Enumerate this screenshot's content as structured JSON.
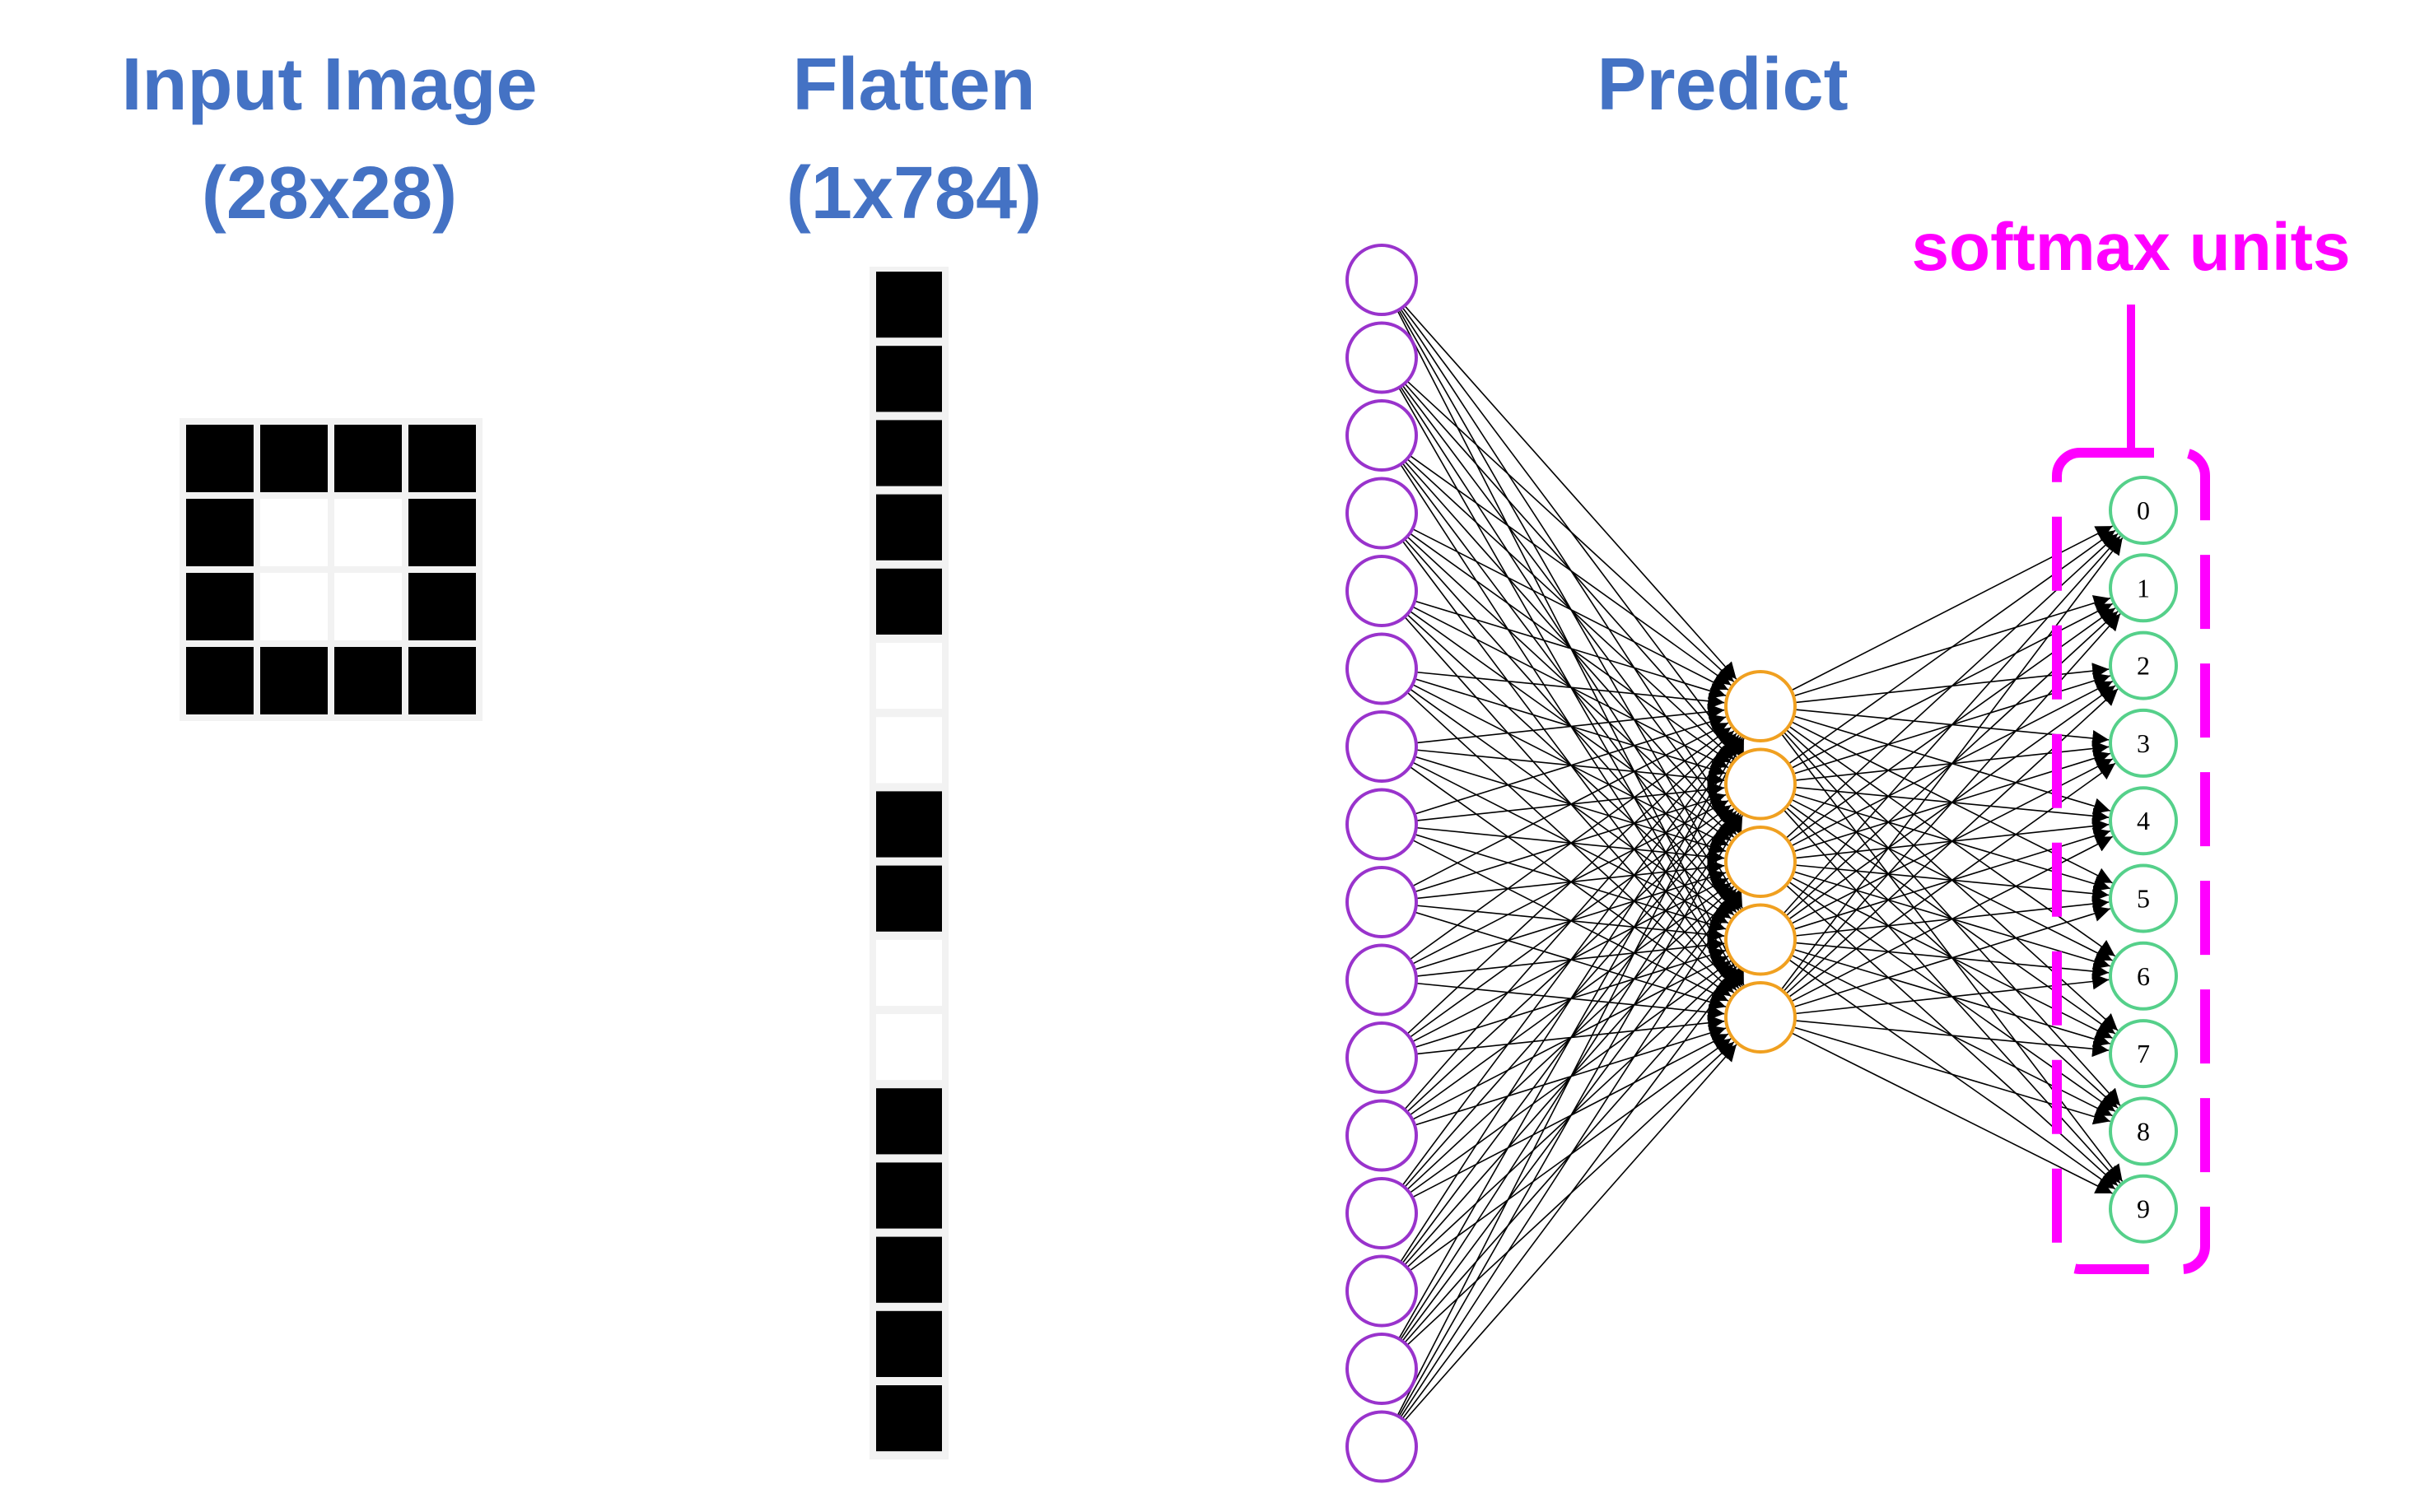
{
  "headings": {
    "input_title": "Input Image",
    "input_dims": "(28x28)",
    "flatten_title": "Flatten",
    "flatten_dims": "(1x784)",
    "predict_title": "Predict",
    "softmax_label": "softmax units"
  },
  "colors": {
    "heading": "#4472c4",
    "softmax": "#ff00ff",
    "input_node": "#9933cc",
    "hidden_node": "#f0a020",
    "output_node": "#55d08a",
    "pixel_on": "#000000",
    "pixel_off": "#ffffff"
  },
  "input_image": {
    "grid": [
      [
        1,
        1,
        1,
        1
      ],
      [
        1,
        0,
        0,
        1
      ],
      [
        1,
        0,
        0,
        1
      ],
      [
        1,
        1,
        1,
        1
      ]
    ]
  },
  "flatten": {
    "pixels": [
      1,
      1,
      1,
      1,
      1,
      0,
      0,
      1,
      1,
      0,
      0,
      1,
      1,
      1,
      1,
      1
    ]
  },
  "network": {
    "input_nodes": 16,
    "hidden_nodes": 5,
    "output_labels": [
      "0",
      "1",
      "2",
      "3",
      "4",
      "5",
      "6",
      "7",
      "8",
      "9"
    ]
  }
}
